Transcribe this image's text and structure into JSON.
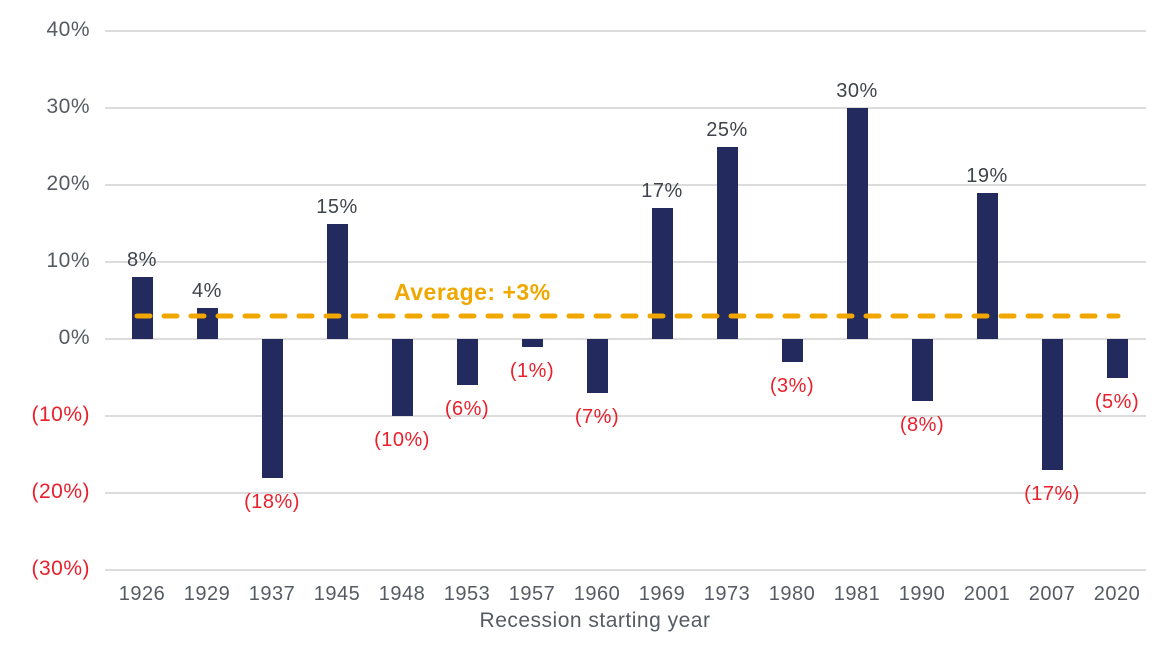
{
  "colors": {
    "bar_navy": "#232a5e",
    "negative_red": "#e9202c",
    "average_gold": "#f0a800",
    "tick_gray": "#565b63",
    "data_label_dark": "#3f444b",
    "gridline_gray": "#dcdcdc"
  },
  "chart_data": {
    "type": "bar",
    "title": "",
    "xlabel": "Recession starting year",
    "ylabel": "",
    "categories": [
      "1926",
      "1929",
      "1937",
      "1945",
      "1948",
      "1953",
      "1957",
      "1960",
      "1969",
      "1973",
      "1980",
      "1981",
      "1990",
      "2001",
      "2007",
      "2020"
    ],
    "values": [
      8,
      4,
      -18,
      15,
      -10,
      -6,
      -1,
      -7,
      17,
      25,
      -3,
      30,
      -8,
      19,
      -17,
      -5
    ],
    "value_labels": [
      "8%",
      "4%",
      "(18%)",
      "15%",
      "(10%)",
      "(6%)",
      "(1%)",
      "(7%)",
      "17%",
      "25%",
      "(3%)",
      "30%",
      "(8%)",
      "19%",
      "(17%)",
      "(5%)"
    ],
    "yticks": [
      {
        "value": 40,
        "label": "40%"
      },
      {
        "value": 30,
        "label": "30%"
      },
      {
        "value": 20,
        "label": "20%"
      },
      {
        "value": 10,
        "label": "10%"
      },
      {
        "value": 0,
        "label": "0%"
      },
      {
        "value": -10,
        "label": "(10%)"
      },
      {
        "value": -20,
        "label": "(20%)"
      },
      {
        "value": -30,
        "label": "(30%)"
      }
    ],
    "ylim": [
      -30,
      40
    ],
    "grid": true,
    "legend_position": "none",
    "average_line": {
      "value": 3,
      "label": "Average: +3%"
    }
  }
}
